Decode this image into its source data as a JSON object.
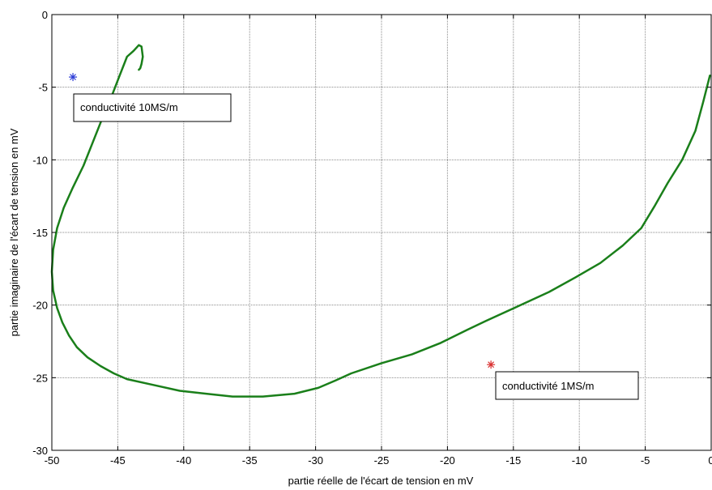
{
  "chart_data": {
    "type": "line",
    "title": "",
    "xlabel": "partie réelle de l'écart de tension en mV",
    "ylabel": "partie imaginaire de l'écart de tension en mV",
    "xlim": [
      -50,
      0
    ],
    "ylim": [
      -30,
      0
    ],
    "grid": true,
    "x_ticks": [
      -50,
      -45,
      -40,
      -35,
      -30,
      -25,
      -20,
      -15,
      -10,
      -5,
      0
    ],
    "y_ticks": [
      0,
      -5,
      -10,
      -15,
      -20,
      -25,
      -30
    ],
    "x_tick_labels": [
      "-50",
      "-45",
      "-40",
      "-35",
      "-30",
      "-25",
      "-20",
      "-15",
      "-10",
      "-5",
      "0"
    ],
    "y_tick_labels": [
      "0",
      "-5",
      "-10",
      "-15",
      "-20",
      "-25",
      "-30"
    ],
    "series": [
      {
        "color": "#1a7f1a",
        "x": [
          -0.1,
          -0.6,
          -1.2,
          -2.2,
          -3.3,
          -4.3,
          -5.3,
          -6.7,
          -8.4,
          -10.3,
          -12.3,
          -14.7,
          -17.1,
          -18.5,
          -20.5,
          -22.7,
          -25.0,
          -27.3,
          -28.5,
          -29.8,
          -31.6,
          -34.0,
          -36.3,
          -38.3,
          -40.3,
          -42.3,
          -44.3,
          -45.3,
          -46.3,
          -47.3,
          -48.1,
          -48.7,
          -49.2,
          -49.6,
          -49.9,
          -50.0,
          -49.9,
          -49.6,
          -49.1,
          -48.4,
          -47.6,
          -46.9,
          -46.2,
          -45.5,
          -44.9,
          -44.3,
          -43.8,
          -43.4,
          -43.2,
          -43.1,
          -43.2,
          -43.3,
          -43.4
        ],
        "y": [
          -4.2,
          -6.0,
          -8.0,
          -10.0,
          -11.6,
          -13.2,
          -14.7,
          -15.9,
          -17.1,
          -18.1,
          -19.1,
          -20.1,
          -21.1,
          -21.7,
          -22.6,
          -23.4,
          -24.0,
          -24.7,
          -25.2,
          -25.7,
          -26.1,
          -26.3,
          -26.3,
          -26.1,
          -25.9,
          -25.5,
          -25.1,
          -24.7,
          -24.2,
          -23.6,
          -22.9,
          -22.1,
          -21.2,
          -20.2,
          -19.0,
          -17.7,
          -16.2,
          -14.7,
          -13.3,
          -11.9,
          -10.4,
          -8.8,
          -7.2,
          -5.7,
          -4.3,
          -2.9,
          -2.5,
          -2.1,
          -2.2,
          -2.9,
          -3.4,
          -3.7,
          -3.8
        ]
      }
    ],
    "markers": [
      {
        "x": -48.4,
        "y": -4.3,
        "color": "#2b3bd6"
      },
      {
        "x": -16.7,
        "y": -24.1,
        "color": "#d93030"
      }
    ],
    "annotations": [
      {
        "text": "conductivité 10MS/m"
      },
      {
        "text": "conductivité 1MS/m"
      }
    ]
  }
}
